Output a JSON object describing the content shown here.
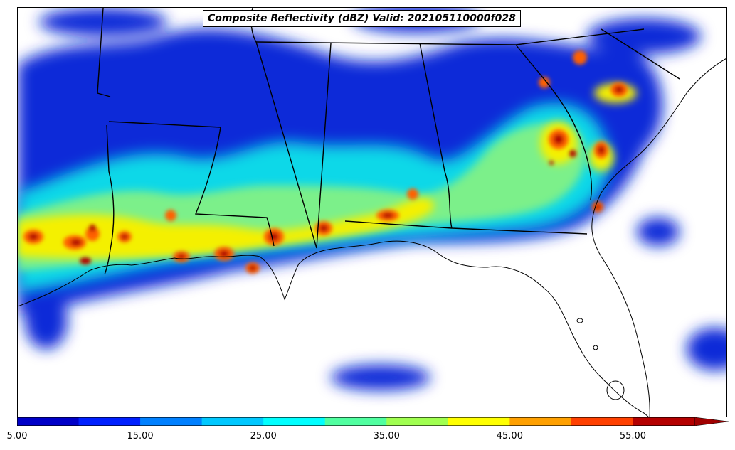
{
  "title": "Composite Reflectivity (dBZ) Valid: 202105110000f028",
  "colorbar": {
    "levels": [
      5,
      10,
      15,
      20,
      25,
      30,
      35,
      40,
      45,
      50,
      55
    ],
    "colors": [
      "#0000c8",
      "#0020ff",
      "#0080ff",
      "#00c8ff",
      "#00ffff",
      "#50ffa0",
      "#a0ff50",
      "#ffff00",
      "#ffa000",
      "#ff4000",
      "#b40000"
    ],
    "extend_color": "#a00000",
    "tick_labels": [
      "5.00",
      "15.00",
      "25.00",
      "35.00",
      "45.00",
      "55.00"
    ]
  },
  "map": {
    "projection": "Lambert Conformal",
    "region": "Southeastern United States and northern Gulf of Mexico"
  }
}
